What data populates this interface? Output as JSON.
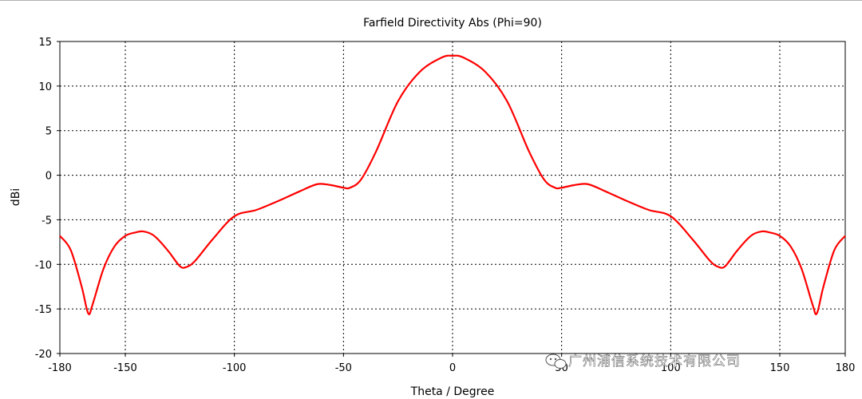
{
  "chart_data": {
    "type": "line",
    "title": "Farfield Directivity Abs (Phi=90)",
    "xlabel": "Theta / Degree",
    "ylabel": "dBi",
    "xlim": [
      -180,
      180
    ],
    "ylim": [
      -20,
      15
    ],
    "xticks": [
      -180,
      -150,
      -100,
      -50,
      0,
      50,
      100,
      150,
      180
    ],
    "yticks": [
      -20,
      -15,
      -10,
      -5,
      0,
      5,
      10,
      15
    ],
    "grid": true,
    "series": [
      {
        "color": "#ff0000",
        "x": [
          -180,
          -175,
          -170,
          -167,
          -165,
          -160,
          -155,
          -150,
          -145,
          -142,
          -138,
          -135,
          -130,
          -125,
          -122,
          -118,
          -110,
          -100,
          -90,
          -80,
          -70,
          -62,
          -56,
          -50,
          -47,
          -42,
          -35,
          -25,
          -15,
          -5,
          0,
          5,
          15,
          25,
          35,
          42,
          47,
          50,
          56,
          62,
          70,
          80,
          90,
          100,
          110,
          118,
          122,
          125,
          130,
          135,
          138,
          142,
          145,
          150,
          155,
          160,
          165,
          167,
          170,
          175,
          180
        ],
        "y": [
          -6.8,
          -8.4,
          -12.5,
          -15.5,
          -14.5,
          -10.5,
          -8.0,
          -6.8,
          -6.4,
          -6.3,
          -6.6,
          -7.2,
          -8.6,
          -10.2,
          -10.3,
          -9.6,
          -7.2,
          -4.6,
          -3.9,
          -2.9,
          -1.8,
          -1.0,
          -1.1,
          -1.4,
          -1.4,
          -0.5,
          2.7,
          8.3,
          11.6,
          13.2,
          13.4,
          13.2,
          11.6,
          8.3,
          2.7,
          -0.5,
          -1.4,
          -1.4,
          -1.1,
          -1.0,
          -1.8,
          -2.9,
          -3.9,
          -4.6,
          -7.2,
          -9.6,
          -10.3,
          -10.2,
          -8.6,
          -7.2,
          -6.6,
          -6.3,
          -6.4,
          -6.8,
          -8.0,
          -10.5,
          -14.5,
          -15.5,
          -12.5,
          -8.4,
          -6.8
        ]
      }
    ]
  },
  "watermark": {
    "text": "广州浦信系统技术有限公司",
    "icon": "wechat-icon"
  }
}
